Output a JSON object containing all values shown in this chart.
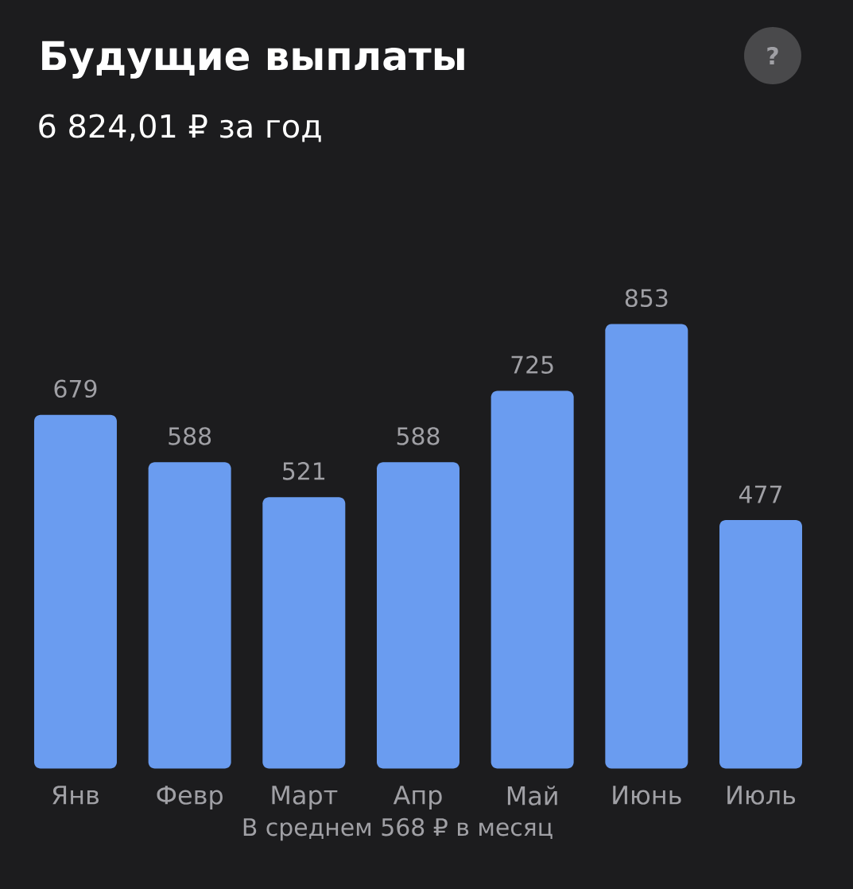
{
  "chart_data": {
    "type": "bar",
    "title": "Будущие выплаты",
    "subtitle": "6 824,01 ₽ за год",
    "categories": [
      "Янв",
      "Февр",
      "Март",
      "Апр",
      "Май",
      "Июнь",
      "Июль"
    ],
    "values": [
      679,
      588,
      521,
      588,
      725,
      853,
      477
    ],
    "color": "#6a9cf0",
    "data_labels": true,
    "annotations": [
      "?",
      "В среднем 568 ₽ в месяц"
    ]
  }
}
